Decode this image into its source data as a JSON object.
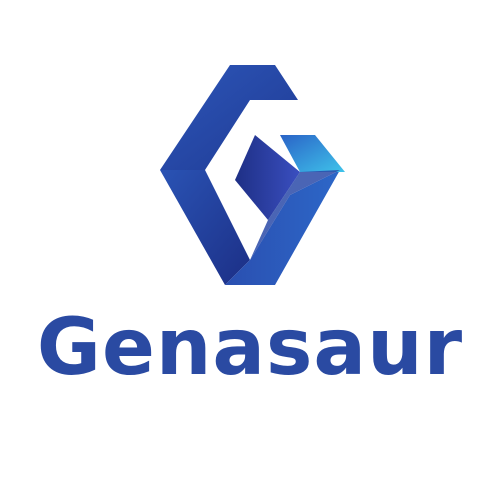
{
  "brand": {
    "name": "Genasaur",
    "primary_color": "#2a4aa2",
    "accent_light": "#3fc3ea",
    "accent_dark": "#1e2f85",
    "icon": "genasaur-g-logo-icon"
  }
}
